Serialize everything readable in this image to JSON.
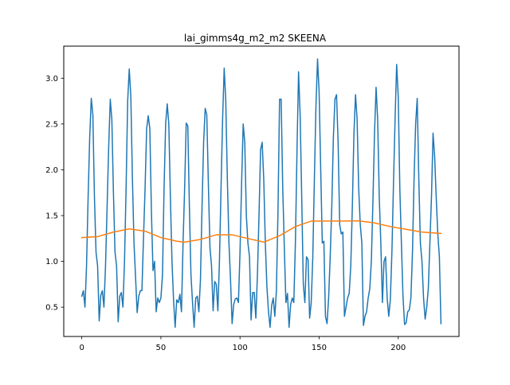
{
  "chart_data": {
    "type": "line",
    "title": "lai_gimms4g_m2_m2 SKEENA",
    "xlabel": "",
    "ylabel": "",
    "xlim": [
      -11.4,
      238.4
    ],
    "ylim": [
      0.18,
      3.35
    ],
    "x_ticks": [
      0,
      50,
      100,
      150,
      200
    ],
    "y_ticks": [
      0.5,
      1.0,
      1.5,
      2.0,
      2.5,
      3.0
    ],
    "x_tick_labels": [
      "0",
      "50",
      "100",
      "150",
      "200"
    ],
    "y_tick_labels": [
      "0.5",
      "1.0",
      "1.5",
      "2.0",
      "2.5",
      "3.0"
    ],
    "grid": false,
    "legend": "none",
    "series": [
      {
        "color": "#1f77b4",
        "points": [
          [
            0,
            0.62
          ],
          [
            1,
            0.68
          ],
          [
            2,
            0.5
          ],
          [
            3,
            0.95
          ],
          [
            4,
            1.7
          ],
          [
            5,
            2.35
          ],
          [
            6,
            2.78
          ],
          [
            7,
            2.6
          ],
          [
            8,
            1.7
          ],
          [
            9,
            1.1
          ],
          [
            10,
            0.95
          ],
          [
            11,
            0.35
          ],
          [
            12,
            0.63
          ],
          [
            13,
            0.68
          ],
          [
            14,
            0.5
          ],
          [
            15,
            0.95
          ],
          [
            16,
            1.6
          ],
          [
            17,
            2.25
          ],
          [
            18,
            2.77
          ],
          [
            19,
            2.55
          ],
          [
            20,
            1.75
          ],
          [
            21,
            1.1
          ],
          [
            22,
            0.95
          ],
          [
            23,
            0.34
          ],
          [
            24,
            0.62
          ],
          [
            25,
            0.66
          ],
          [
            26,
            0.5
          ],
          [
            27,
            1.0
          ],
          [
            28,
            1.8
          ],
          [
            29,
            2.75
          ],
          [
            30,
            3.1
          ],
          [
            31,
            2.8
          ],
          [
            32,
            1.9
          ],
          [
            33,
            1.2
          ],
          [
            34,
            0.82
          ],
          [
            35,
            0.44
          ],
          [
            36,
            0.62
          ],
          [
            37,
            0.68
          ],
          [
            38,
            0.68
          ],
          [
            39,
            1.25
          ],
          [
            40,
            1.8
          ],
          [
            41,
            2.45
          ],
          [
            42,
            2.59
          ],
          [
            43,
            2.45
          ],
          [
            44,
            1.55
          ],
          [
            45,
            0.9
          ],
          [
            46,
            1.0
          ],
          [
            47,
            0.45
          ],
          [
            48,
            0.6
          ],
          [
            49,
            0.55
          ],
          [
            50,
            0.6
          ],
          [
            51,
            0.85
          ],
          [
            52,
            1.8
          ],
          [
            53,
            2.5
          ],
          [
            54,
            2.72
          ],
          [
            55,
            2.5
          ],
          [
            56,
            1.7
          ],
          [
            57,
            1.0
          ],
          [
            58,
            0.58
          ],
          [
            59,
            0.28
          ],
          [
            60,
            0.58
          ],
          [
            61,
            0.55
          ],
          [
            62,
            0.64
          ],
          [
            63,
            0.45
          ],
          [
            64,
            1.2
          ],
          [
            65,
            1.8
          ],
          [
            66,
            2.51
          ],
          [
            67,
            2.48
          ],
          [
            68,
            1.6
          ],
          [
            69,
            0.85
          ],
          [
            70,
            0.55
          ],
          [
            71,
            0.28
          ],
          [
            72,
            0.6
          ],
          [
            73,
            0.62
          ],
          [
            74,
            0.45
          ],
          [
            75,
            0.8
          ],
          [
            76,
            1.6
          ],
          [
            77,
            2.3
          ],
          [
            78,
            2.67
          ],
          [
            79,
            2.6
          ],
          [
            80,
            1.85
          ],
          [
            81,
            1.15
          ],
          [
            82,
            0.95
          ],
          [
            83,
            0.46
          ],
          [
            84,
            0.78
          ],
          [
            85,
            0.75
          ],
          [
            86,
            0.46
          ],
          [
            87,
            1.0
          ],
          [
            88,
            1.8
          ],
          [
            89,
            2.55
          ],
          [
            90,
            3.11
          ],
          [
            91,
            2.75
          ],
          [
            92,
            1.9
          ],
          [
            93,
            1.2
          ],
          [
            94,
            0.8
          ],
          [
            95,
            0.32
          ],
          [
            96,
            0.53
          ],
          [
            97,
            0.59
          ],
          [
            98,
            0.6
          ],
          [
            99,
            0.55
          ],
          [
            100,
            1.1
          ],
          [
            101,
            1.85
          ],
          [
            102,
            2.5
          ],
          [
            103,
            2.3
          ],
          [
            104,
            1.5
          ],
          [
            105,
            1.2
          ],
          [
            106,
            1.05
          ],
          [
            107,
            0.36
          ],
          [
            108,
            0.66
          ],
          [
            109,
            0.66
          ],
          [
            110,
            0.38
          ],
          [
            111,
            0.85
          ],
          [
            112,
            1.5
          ],
          [
            113,
            2.22
          ],
          [
            114,
            2.3
          ],
          [
            115,
            1.9
          ],
          [
            116,
            1.2
          ],
          [
            117,
            0.72
          ],
          [
            118,
            0.45
          ],
          [
            119,
            0.28
          ],
          [
            120,
            0.52
          ],
          [
            121,
            0.6
          ],
          [
            122,
            0.4
          ],
          [
            123,
            0.68
          ],
          [
            124,
            1.55
          ],
          [
            125,
            2.77
          ],
          [
            126,
            2.77
          ],
          [
            127,
            1.8
          ],
          [
            128,
            1.15
          ],
          [
            129,
            0.55
          ],
          [
            130,
            0.65
          ],
          [
            131,
            0.28
          ],
          [
            132,
            0.53
          ],
          [
            133,
            0.6
          ],
          [
            134,
            0.55
          ],
          [
            135,
            1.2
          ],
          [
            136,
            2.2
          ],
          [
            137,
            3.07
          ],
          [
            138,
            2.6
          ],
          [
            139,
            1.7
          ],
          [
            140,
            0.75
          ],
          [
            141,
            0.55
          ],
          [
            142,
            1.05
          ],
          [
            143,
            1.02
          ],
          [
            144,
            0.38
          ],
          [
            145,
            0.55
          ],
          [
            146,
            1.05
          ],
          [
            147,
            1.9
          ],
          [
            148,
            2.7
          ],
          [
            149,
            3.21
          ],
          [
            150,
            2.85
          ],
          [
            151,
            2.0
          ],
          [
            152,
            1.2
          ],
          [
            153,
            1.22
          ],
          [
            154,
            0.4
          ],
          [
            155,
            0.32
          ],
          [
            156,
            0.6
          ],
          [
            157,
            1.05
          ],
          [
            158,
            1.6
          ],
          [
            159,
            2.35
          ],
          [
            160,
            2.77
          ],
          [
            161,
            2.82
          ],
          [
            162,
            2.3
          ],
          [
            163,
            1.4
          ],
          [
            164,
            1.3
          ],
          [
            165,
            1.32
          ],
          [
            166,
            0.4
          ],
          [
            167,
            0.5
          ],
          [
            168,
            0.6
          ],
          [
            169,
            0.65
          ],
          [
            170,
            0.95
          ],
          [
            171,
            1.6
          ],
          [
            172,
            2.4
          ],
          [
            173,
            2.82
          ],
          [
            174,
            2.55
          ],
          [
            175,
            1.8
          ],
          [
            176,
            1.4
          ],
          [
            177,
            1.2
          ],
          [
            178,
            0.3
          ],
          [
            179,
            0.4
          ],
          [
            180,
            0.45
          ],
          [
            181,
            0.6
          ],
          [
            182,
            0.7
          ],
          [
            183,
            1.0
          ],
          [
            184,
            1.65
          ],
          [
            185,
            2.4
          ],
          [
            186,
            2.9
          ],
          [
            187,
            2.55
          ],
          [
            188,
            1.7
          ],
          [
            189,
            1.2
          ],
          [
            190,
            0.55
          ],
          [
            191,
            1.0
          ],
          [
            192,
            1.05
          ],
          [
            193,
            0.6
          ],
          [
            194,
            0.4
          ],
          [
            195,
            0.58
          ],
          [
            196,
            1.1
          ],
          [
            197,
            1.85
          ],
          [
            198,
            2.55
          ],
          [
            199,
            3.15
          ],
          [
            200,
            2.8
          ],
          [
            201,
            1.8
          ],
          [
            202,
            1.2
          ],
          [
            203,
            0.62
          ],
          [
            204,
            0.31
          ],
          [
            205,
            0.33
          ],
          [
            206,
            0.45
          ],
          [
            207,
            0.47
          ],
          [
            208,
            0.6
          ],
          [
            209,
            1.1
          ],
          [
            210,
            1.9
          ],
          [
            211,
            2.5
          ],
          [
            212,
            2.78
          ],
          [
            213,
            1.9
          ],
          [
            214,
            1.2
          ],
          [
            215,
            1.0
          ],
          [
            216,
            0.6
          ],
          [
            217,
            0.37
          ],
          [
            218,
            0.5
          ],
          [
            219,
            0.7
          ],
          [
            220,
            1.2
          ],
          [
            221,
            1.7
          ],
          [
            222,
            2.4
          ],
          [
            223,
            2.15
          ],
          [
            224,
            1.7
          ],
          [
            225,
            1.3
          ],
          [
            226,
            1.05
          ],
          [
            227,
            0.32
          ]
        ]
      },
      {
        "color": "#ff7f0e",
        "points": [
          [
            0,
            1.26
          ],
          [
            10,
            1.27
          ],
          [
            20,
            1.32
          ],
          [
            30,
            1.355
          ],
          [
            40,
            1.33
          ],
          [
            50,
            1.26
          ],
          [
            60,
            1.22
          ],
          [
            65,
            1.21
          ],
          [
            75,
            1.24
          ],
          [
            85,
            1.29
          ],
          [
            95,
            1.29
          ],
          [
            105,
            1.25
          ],
          [
            115,
            1.21
          ],
          [
            125,
            1.28
          ],
          [
            135,
            1.38
          ],
          [
            145,
            1.44
          ],
          [
            155,
            1.44
          ],
          [
            165,
            1.44
          ],
          [
            175,
            1.443
          ],
          [
            185,
            1.42
          ],
          [
            195,
            1.38
          ],
          [
            205,
            1.35
          ],
          [
            215,
            1.32
          ],
          [
            227,
            1.305
          ]
        ]
      }
    ]
  }
}
